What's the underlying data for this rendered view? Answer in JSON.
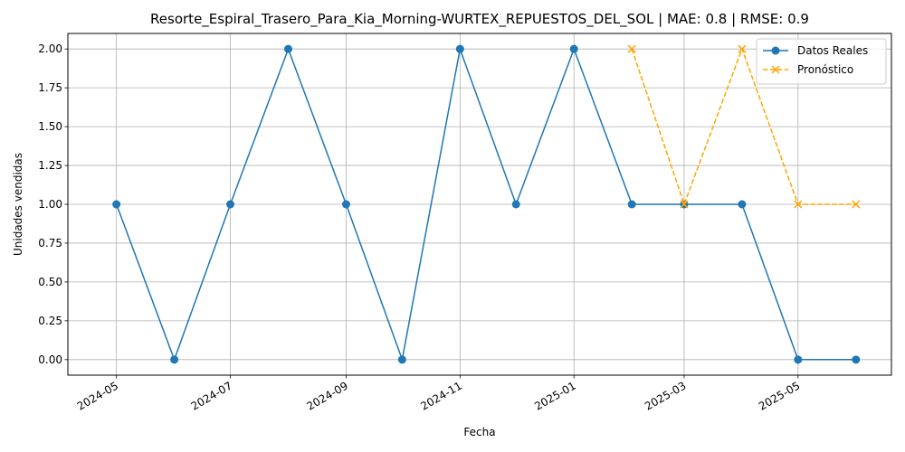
{
  "chart_data": {
    "type": "line",
    "title": "Resorte_Espiral_Trasero_Para_Kia_Morning-WURTEX_REPUESTOS_DEL_SOL | MAE: 0.8 | RMSE: 0.9",
    "xlabel": "Fecha",
    "ylabel": "Unidades vendidas",
    "x_ticks": [
      "2024-05-01",
      "2024-07-01",
      "2024-09-01",
      "2024-11-01",
      "2025-01-01",
      "2025-03-01",
      "2025-05-01"
    ],
    "x_tick_labels": [
      "2024-05",
      "2024-07",
      "2024-09",
      "2024-11",
      "2025-01",
      "2025-03",
      "2025-05"
    ],
    "y_ticks": [
      0.0,
      0.25,
      0.5,
      0.75,
      1.0,
      1.25,
      1.5,
      1.75,
      2.0
    ],
    "y_tick_labels": [
      "0.00",
      "0.25",
      "0.50",
      "0.75",
      "1.00",
      "1.25",
      "1.50",
      "1.75",
      "2.00"
    ],
    "ylim": [
      -0.1,
      2.1
    ],
    "xlim": [
      "2024-04-05",
      "2025-06-20"
    ],
    "grid": true,
    "legend_position": "top-right",
    "series": [
      {
        "name": "Datos Reales",
        "style": "solid",
        "marker": "circle",
        "color": "#1f77b4",
        "x": [
          "2024-05-01",
          "2024-06-01",
          "2024-07-01",
          "2024-08-01",
          "2024-09-01",
          "2024-10-01",
          "2024-11-01",
          "2024-12-01",
          "2025-01-01",
          "2025-02-01",
          "2025-03-01",
          "2025-04-01",
          "2025-05-01",
          "2025-06-01"
        ],
        "y": [
          1,
          0,
          1,
          2,
          1,
          0,
          2,
          1,
          2,
          1,
          1,
          1,
          0,
          0
        ]
      },
      {
        "name": "Pronóstico",
        "style": "dashed",
        "marker": "x",
        "color": "#ffa500",
        "x": [
          "2025-02-01",
          "2025-03-01",
          "2025-04-01",
          "2025-05-01",
          "2025-06-01"
        ],
        "y": [
          2,
          1,
          2,
          1,
          1
        ]
      }
    ]
  }
}
